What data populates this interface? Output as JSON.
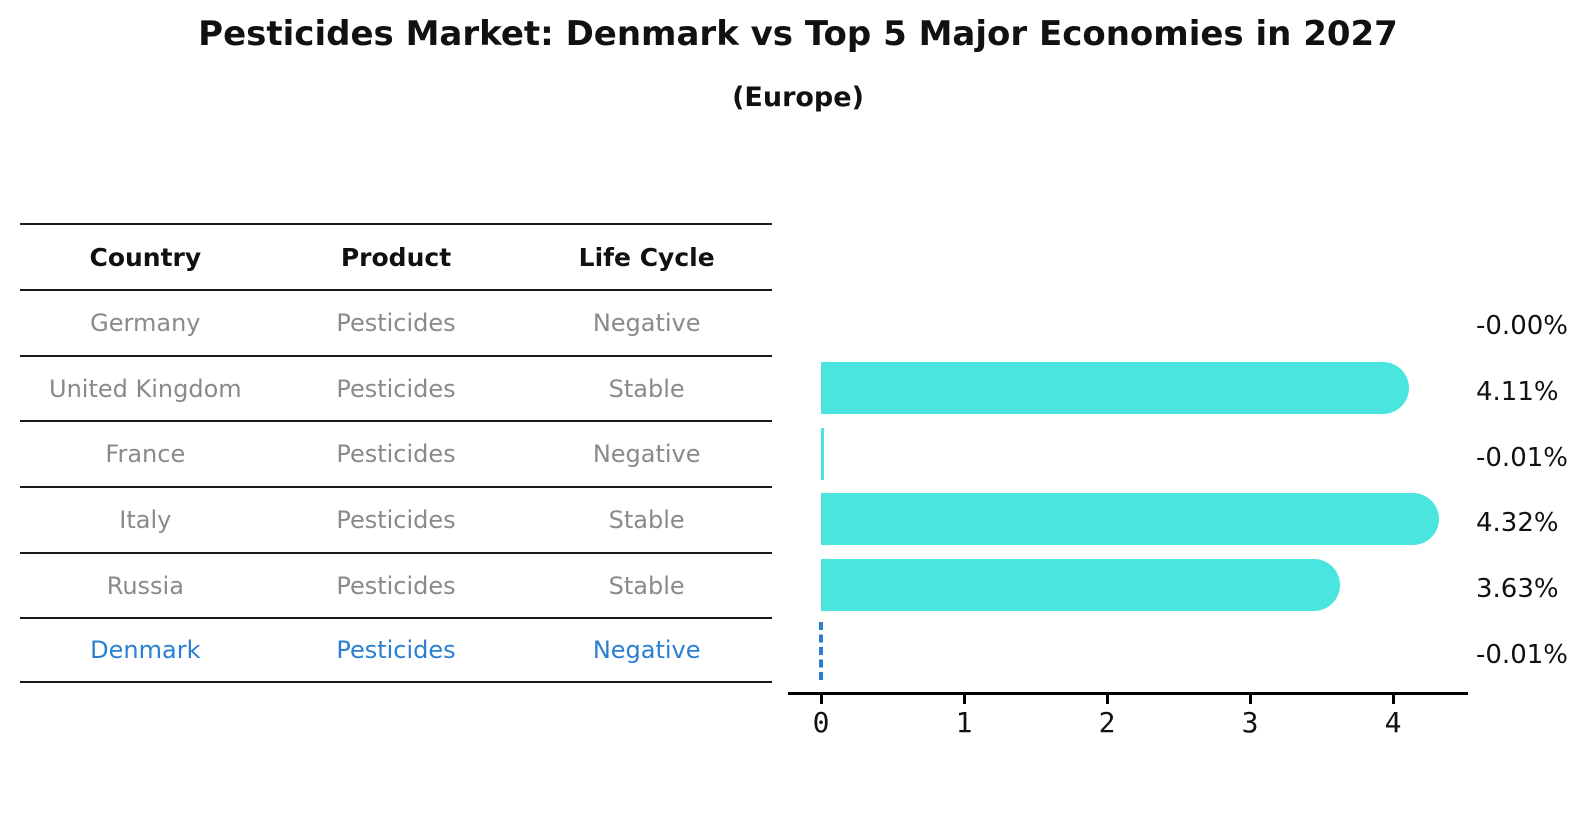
{
  "chart_data": {
    "type": "bar",
    "orientation": "horizontal",
    "title": "Pesticides Market: Denmark vs Top 5 Major Economies in 2027",
    "subtitle": "(Europe)",
    "categories": [
      "Germany",
      "United Kingdom",
      "France",
      "Italy",
      "Russia",
      "Denmark"
    ],
    "values": [
      -0.0,
      4.11,
      -0.01,
      4.32,
      3.63,
      -0.01
    ],
    "value_labels": [
      "-0.00%",
      "4.11%",
      "-0.01%",
      "4.32%",
      "3.63%",
      "-0.01%"
    ],
    "xticks": [
      0,
      1,
      2,
      3,
      4
    ],
    "xlim": [
      -0.23,
      4.52
    ],
    "grid": false,
    "legend": false,
    "bar_color": "#4be5e0",
    "highlight_color": "#2b7fd3",
    "highlight_index": 5,
    "highlight_style": "dashed-outline"
  },
  "table": {
    "headers": [
      "Country",
      "Product",
      "Life Cycle"
    ],
    "rows": [
      {
        "country": "Germany",
        "product": "Pesticides",
        "life_cycle": "Negative",
        "highlighted": false
      },
      {
        "country": "United Kingdom",
        "product": "Pesticides",
        "life_cycle": "Stable",
        "highlighted": false
      },
      {
        "country": "France",
        "product": "Pesticides",
        "life_cycle": "Negative",
        "highlighted": false
      },
      {
        "country": "Italy",
        "product": "Pesticides",
        "life_cycle": "Stable",
        "highlighted": false
      },
      {
        "country": "Russia",
        "product": "Pesticides",
        "life_cycle": "Stable",
        "highlighted": false
      },
      {
        "country": "Denmark",
        "product": "Pesticides",
        "life_cycle": "Negative",
        "highlighted": true
      }
    ]
  },
  "colors": {
    "bar": "#4be5e0",
    "highlight": "#2b7fd3",
    "table_text": "#8a8a8a",
    "line": "#1a1a1a",
    "text": "#111111",
    "background": "#ffffff"
  }
}
